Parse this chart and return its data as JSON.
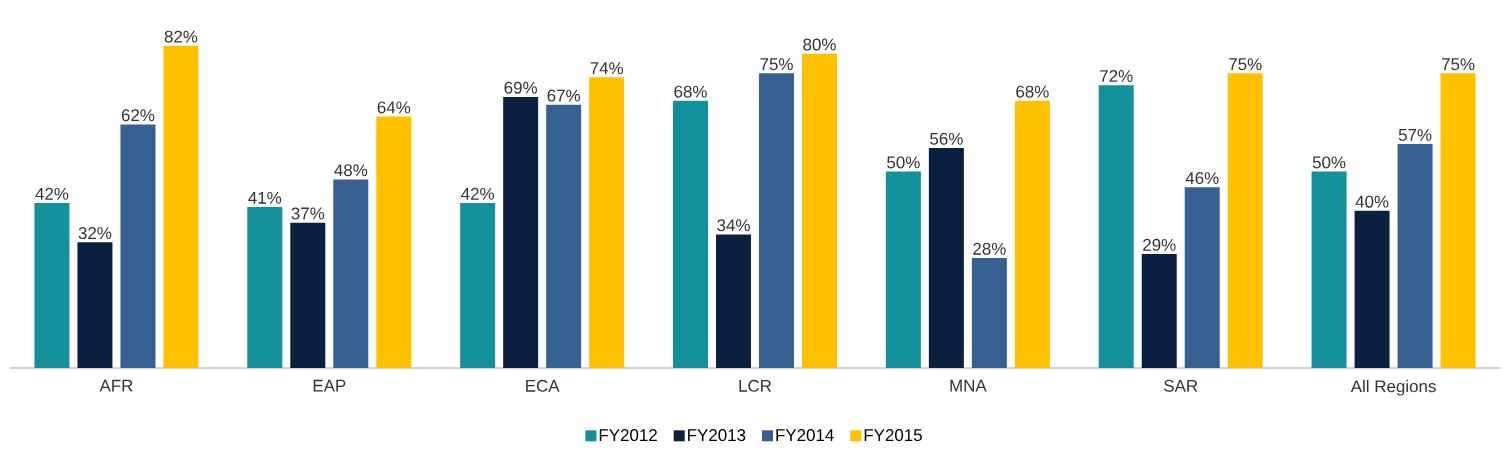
{
  "chart_data": {
    "type": "bar",
    "categories": [
      "AFR",
      "EAP",
      "ECA",
      "LCR",
      "MNA",
      "SAR",
      "All Regions"
    ],
    "series": [
      {
        "name": "FY2012",
        "color": "#13909b",
        "values": [
          42,
          41,
          42,
          68,
          50,
          72,
          50
        ],
        "value_labels": [
          "42%",
          "41%",
          "42%",
          "68%",
          "50%",
          "72%",
          "50%"
        ]
      },
      {
        "name": "FY2013",
        "color": "#0b2041",
        "values": [
          32,
          37,
          69,
          34,
          56,
          29,
          40
        ],
        "value_labels": [
          "32%",
          "37%",
          "69%",
          "34%",
          "56%",
          "29%",
          "40%"
        ]
      },
      {
        "name": "FY2014",
        "color": "#376092",
        "values": [
          62,
          48,
          67,
          75,
          28,
          46,
          57
        ],
        "value_labels": [
          "62%",
          "48%",
          "67%",
          "75%",
          "28%",
          "46%",
          "57%"
        ]
      },
      {
        "name": "FY2015",
        "color": "#ffc000",
        "values": [
          82,
          64,
          74,
          80,
          68,
          75,
          75
        ],
        "value_labels": [
          "82%",
          "64%",
          "74%",
          "80%",
          "68%",
          "75%",
          "75%"
        ]
      }
    ],
    "tick_labels": "x",
    "legend": "bottom"
  }
}
